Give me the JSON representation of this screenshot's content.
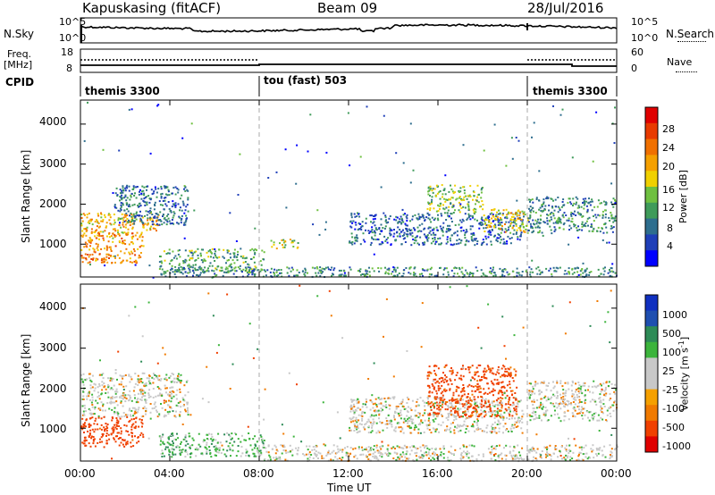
{
  "header": {
    "station": "Kapuskasing (fitACF)",
    "beam": "Beam 09",
    "date": "28/Jul/2016"
  },
  "left_labels": {
    "nsky": "N.Sky",
    "freq": "Freq.",
    "freq_unit": "[MHz]",
    "cpid": "CPID"
  },
  "right_labels": {
    "nsearch": "N.Search",
    "nave": "Nave"
  },
  "noise_panel": {
    "ytick_top": "10^5",
    "ytick_bottom": "10^0",
    "rtick_top": "10^5",
    "rtick_bottom": "10^0"
  },
  "freq_panel": {
    "left_ticks": [
      "18",
      "8"
    ],
    "right_ticks": [
      "60",
      "0"
    ]
  },
  "cpid_segments": [
    {
      "label": "themis 3300",
      "start": 0,
      "end": 8
    },
    {
      "label": "tou (fast) 503",
      "start": 8,
      "end": 20
    },
    {
      "label": "themis 3300",
      "start": 20,
      "end": 24
    }
  ],
  "colors": {
    "power": [
      "#0000ff",
      "#1f3fb8",
      "#2e6e8e",
      "#3f9b5a",
      "#6fc040",
      "#f0d000",
      "#f5a000",
      "#f07000",
      "#e83a00",
      "#e00000"
    ],
    "velocity": [
      "#e00000",
      "#f04000",
      "#f07a00",
      "#f5a000",
      "#c8c8c8",
      "#c8c8c8",
      "#3cb43c",
      "#2e8b57",
      "#1f4fb0",
      "#1030c0"
    ],
    "ground": "#c8c8c8"
  },
  "chart_data": [
    {
      "type": "heatmap",
      "name": "power",
      "ylabel": "Slant Range [km]",
      "xlabel": "",
      "x_range_hours": [
        0,
        24
      ],
      "ylim": [
        180,
        4600
      ],
      "yticks": [
        "1000",
        "2000",
        "3000",
        "4000"
      ],
      "colorbar_label": "Power [dB]",
      "colorbar_ticks": [
        "4",
        "8",
        "12",
        "16",
        "20",
        "24",
        "28"
      ],
      "colorbar_range": [
        0,
        32
      ],
      "regions": [
        {
          "t0": 0.0,
          "t1": 3.5,
          "r0": 1300,
          "r1": 1800,
          "mean_db": 20
        },
        {
          "t0": 0.0,
          "t1": 2.8,
          "r0": 550,
          "r1": 1300,
          "mean_db": 22
        },
        {
          "t0": 1.5,
          "t1": 4.8,
          "r0": 1500,
          "r1": 2500,
          "mean_db": 8
        },
        {
          "t0": 3.5,
          "t1": 8.2,
          "r0": 300,
          "r1": 900,
          "mean_db": 12
        },
        {
          "t0": 3.5,
          "t1": 24.0,
          "r0": 200,
          "r1": 450,
          "mean_db": 10
        },
        {
          "t0": 8.5,
          "t1": 9.8,
          "r0": 900,
          "r1": 1150,
          "mean_db": 16
        },
        {
          "t0": 12.0,
          "t1": 19.8,
          "r0": 1000,
          "r1": 1800,
          "mean_db": 7
        },
        {
          "t0": 15.5,
          "t1": 18.0,
          "r0": 1800,
          "r1": 2500,
          "mean_db": 14
        },
        {
          "t0": 18.0,
          "t1": 20.0,
          "r0": 1300,
          "r1": 1900,
          "mean_db": 18
        },
        {
          "t0": 20.0,
          "t1": 24.0,
          "r0": 1300,
          "r1": 2200,
          "mean_db": 10
        }
      ]
    },
    {
      "type": "heatmap",
      "name": "velocity",
      "ylabel": "Slant Range [km]",
      "xlabel": "Time UT",
      "x_range_hours": [
        0,
        24
      ],
      "xticks": [
        "00:00",
        "04:00",
        "08:00",
        "12:00",
        "16:00",
        "20:00",
        "00:00"
      ],
      "ylim": [
        180,
        4600
      ],
      "yticks": [
        "1000",
        "2000",
        "3000",
        "4000"
      ],
      "colorbar_label": "Velocity [m s^-1]",
      "colorbar_ticks": [
        "1000",
        "500",
        "100",
        "25",
        "-25",
        "-100",
        "-500",
        "-1000"
      ],
      "regions": [
        {
          "t0": 0.0,
          "t1": 4.8,
          "r0": 1300,
          "r1": 2400,
          "vel": 0
        },
        {
          "t0": 0.0,
          "t1": 2.8,
          "r0": 550,
          "r1": 1300,
          "vel": -300
        },
        {
          "t0": 3.5,
          "t1": 8.2,
          "r0": 300,
          "r1": 900,
          "vel": 60
        },
        {
          "t0": 8.2,
          "t1": 24.0,
          "r0": 200,
          "r1": 600,
          "vel": 0
        },
        {
          "t0": 12.0,
          "t1": 19.8,
          "r0": 900,
          "r1": 1800,
          "vel": 0
        },
        {
          "t0": 15.5,
          "t1": 19.5,
          "r0": 1300,
          "r1": 2600,
          "vel": -200
        },
        {
          "t0": 20.0,
          "t1": 24.0,
          "r0": 1200,
          "r1": 2200,
          "vel": 0
        }
      ]
    }
  ]
}
